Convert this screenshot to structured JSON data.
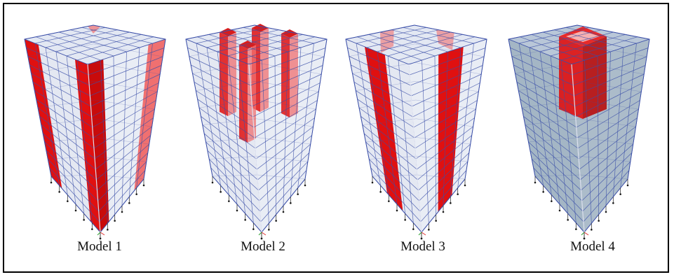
{
  "figure": {
    "models": [
      {
        "label": "Model 1",
        "shear_walls": "corner-L"
      },
      {
        "label": "Model 2",
        "shear_walls": "distributed-inner"
      },
      {
        "label": "Model 3",
        "shear_walls": "side-walls"
      },
      {
        "label": "Model 4",
        "shear_walls": "central-core"
      }
    ],
    "colors": {
      "frame": "#3b4fa8",
      "wall": "#e01010",
      "wall_light": "#f07070",
      "glass": "#c9d2e6",
      "dense": "#5a7a96"
    },
    "stories": 16
  }
}
